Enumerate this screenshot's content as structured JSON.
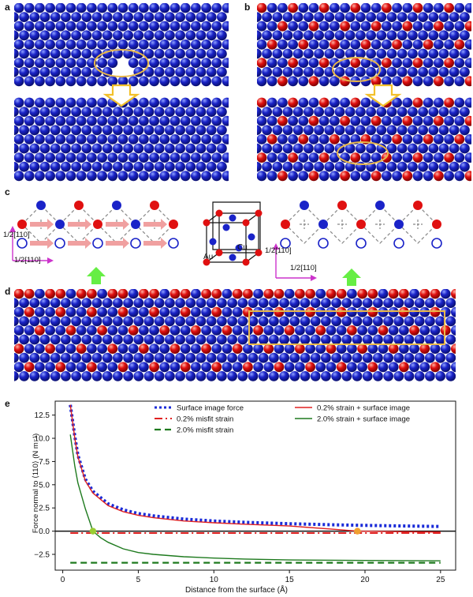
{
  "panels": {
    "a": "a",
    "b": "b",
    "c": "c",
    "d": "d",
    "e": "e"
  },
  "panel_c": {
    "direction_label": "1/2[110]",
    "unit_cell_labels": [
      "Cu",
      "Au"
    ]
  },
  "colors": {
    "cu_atom": "#1a23c8",
    "au_atom": "#e01010",
    "highlight_ellipse": "#e8b84a",
    "arrow_yellow": "#f2c02a",
    "arrow_green": "#66ee44",
    "arrow_magenta": "#cc33cc"
  },
  "chart_data": {
    "type": "line",
    "xlabel": "Distance from the surface (Å)",
    "ylabel": "Force normal to ⟨110⟩ (N m⁻¹)",
    "xlim": [
      -0.5,
      26
    ],
    "ylim": [
      -4.2,
      14
    ],
    "xticks": [
      0,
      5,
      10,
      15,
      20,
      25
    ],
    "yticks": [
      -2.5,
      0.0,
      2.5,
      5.0,
      7.5,
      10.0,
      12.5
    ],
    "ytick_labels": [
      "−2.5",
      "0.0",
      "2.5",
      "5.0",
      "7.5",
      "10.0",
      "12.5"
    ],
    "legend_placement": "top",
    "series": [
      {
        "name": "Surface image force",
        "style": "dotted",
        "color": "#1a2bd8",
        "x": [
          0.5,
          0.8,
          1.0,
          1.5,
          2,
          3,
          4,
          5,
          6,
          8,
          10,
          12,
          15,
          18,
          20,
          22,
          25
        ],
        "y": [
          13.6,
          10.2,
          8.2,
          5.6,
          4.3,
          2.95,
          2.3,
          1.9,
          1.65,
          1.3,
          1.1,
          0.95,
          0.8,
          0.68,
          0.62,
          0.57,
          0.5
        ]
      },
      {
        "name": "0.2% misfit strain",
        "style": "dashdot",
        "color": "#e02020",
        "x": [
          0.5,
          25
        ],
        "y": [
          -0.2,
          -0.2
        ]
      },
      {
        "name": "2.0% misfit strain",
        "style": "dashed",
        "color": "#1e7a1e",
        "x": [
          0.5,
          25
        ],
        "y": [
          -3.4,
          -3.4
        ]
      },
      {
        "name": "0.2% strain + surface image",
        "style": "solid",
        "color": "#e02020",
        "x": [
          0.5,
          0.8,
          1.0,
          1.5,
          2,
          3,
          4,
          5,
          6,
          8,
          10,
          12,
          15,
          18,
          19.5,
          22,
          25
        ],
        "y": [
          13.6,
          10.0,
          8.0,
          5.4,
          4.1,
          2.75,
          2.1,
          1.7,
          1.45,
          1.1,
          0.9,
          0.75,
          0.55,
          0.2,
          0.0,
          -0.05,
          -0.1
        ]
      },
      {
        "name": "2.0% strain + surface image",
        "style": "solid",
        "color": "#1e7a1e",
        "x": [
          0.5,
          0.8,
          1.0,
          1.5,
          2,
          2.5,
          3,
          4,
          5,
          6,
          8,
          10,
          12,
          15,
          20,
          25
        ],
        "y": [
          10.4,
          7.0,
          5.2,
          2.4,
          0.0,
          -0.7,
          -1.2,
          -1.9,
          -2.3,
          -2.5,
          -2.75,
          -2.9,
          -3.0,
          -3.1,
          -3.15,
          -3.2
        ]
      }
    ],
    "markers": [
      {
        "x": 2.0,
        "y": 0.0,
        "color": "#9acd32"
      },
      {
        "x": 19.5,
        "y": 0.0,
        "color": "#f0a030"
      }
    ]
  }
}
